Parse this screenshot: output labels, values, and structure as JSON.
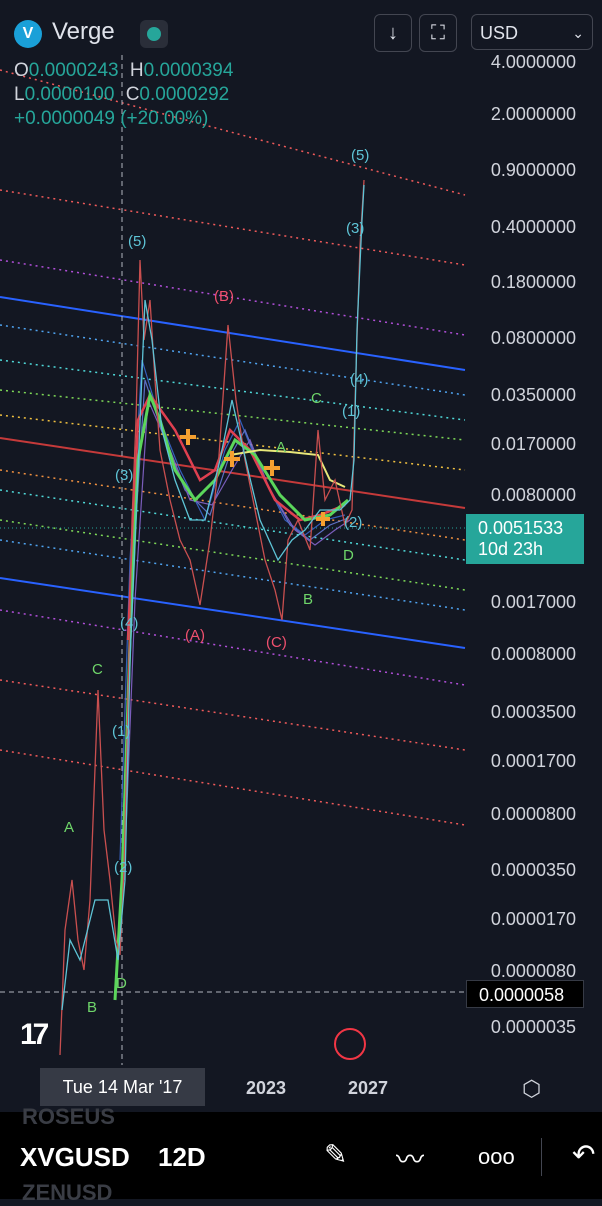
{
  "header": {
    "logo_glyph": "V",
    "symbol_name": "Verge",
    "download_icon": "↓",
    "fullscreen_icon": "⛶",
    "currency": "USD",
    "currency_chevron": "⌄"
  },
  "ohlc": {
    "o_key": "O",
    "o_val": "0.0000243",
    "h_key": "H",
    "h_val": "0.0000394",
    "l_key": "L",
    "l_val": "0.0000100",
    "c_key": "C",
    "c_val": "0.0000292",
    "change": "+0.0000049 (+20.00%)"
  },
  "price_axis": {
    "labels": [
      "4.0000000",
      "2.0000000",
      "0.9000000",
      "0.4000000",
      "0.1800000",
      "0.0800000",
      "0.0350000",
      "0.0170000",
      "0.0080000",
      "0.0017000",
      "0.0008000",
      "0.0003500",
      "0.0001700",
      "0.0000800",
      "0.0000350",
      "0.0000170",
      "0.0000080",
      "0.0000035"
    ],
    "current_price": "0.0051533",
    "countdown": "10d 23h",
    "crosshair_price": "0.0000058"
  },
  "time_axis": {
    "crosshair_date": "Tue 14 Mar '17",
    "labels": [
      "2023",
      "2027"
    ]
  },
  "wave_labels": {
    "five_a": "(5)",
    "three_a": "(3)",
    "four_a": "(4)",
    "one_a": "(1)",
    "two_a": "(2)",
    "A_red": "(A)",
    "B_red": "(B)",
    "C_red": "(C)",
    "five_b": "(5)",
    "three_b": "(3)",
    "four_b": "(4)",
    "one_b": "(1)",
    "two_b": "(2)",
    "A_g": "A",
    "B_g": "B",
    "C_g": "C",
    "D_g": "D",
    "A2_g": "A",
    "B2_g": "B",
    "C2_g": "C",
    "D2_g": "D"
  },
  "bottom_bar": {
    "ghost_prev": "ROSEUS",
    "symbol": "XVGUSD",
    "interval": "12D",
    "ghost_next": "ZENUSD",
    "draw_icon": "✎",
    "indicators_icon": "〰",
    "more_icon": "ooo",
    "back_icon": "↶"
  },
  "colors": {
    "background": "#131722",
    "up": "#26a69a",
    "wave_blue": "#5ec4d6",
    "wave_red": "#f0506e",
    "wave_green": "#6fd66a",
    "channel_blue": "#2962ff"
  }
}
